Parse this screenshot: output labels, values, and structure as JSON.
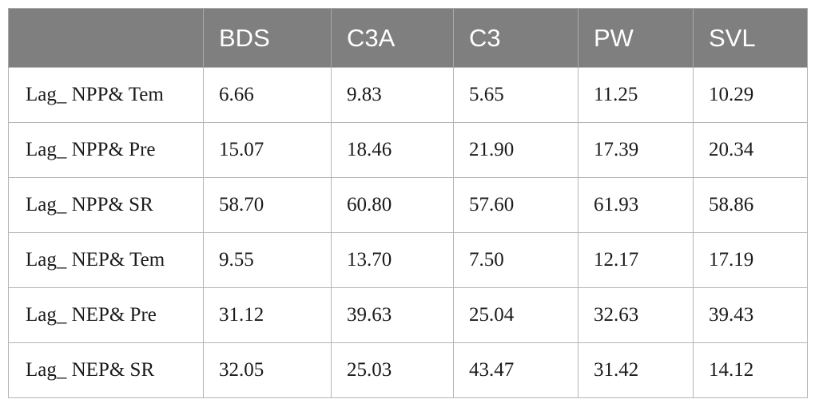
{
  "table": {
    "headers": [
      "",
      "BDS",
      "C3A",
      "C3",
      "PW",
      "SVL"
    ],
    "rows": [
      {
        "label": "Lag_ NPP& Tem",
        "values": [
          "6.66",
          "9.83",
          "5.65",
          "11.25",
          "10.29"
        ]
      },
      {
        "label": "Lag_ NPP& Pre",
        "values": [
          "15.07",
          "18.46",
          "21.90",
          "17.39",
          "20.34"
        ]
      },
      {
        "label": "Lag_ NPP& SR",
        "values": [
          "58.70",
          "60.80",
          "57.60",
          "61.93",
          "58.86"
        ]
      },
      {
        "label": "Lag_ NEP& Tem",
        "values": [
          "9.55",
          "13.70",
          "7.50",
          "12.17",
          "17.19"
        ]
      },
      {
        "label": "Lag_ NEP& Pre",
        "values": [
          "31.12",
          "39.63",
          "25.04",
          "32.63",
          "39.43"
        ]
      },
      {
        "label": "Lag_ NEP& SR",
        "values": [
          "32.05",
          "25.03",
          "43.47",
          "31.42",
          "14.12"
        ]
      }
    ]
  },
  "colors": {
    "header_bg": "#7f7f7f",
    "header_text": "#ffffff",
    "cell_text": "#1a1a1a",
    "border": "#b5b5b5"
  }
}
